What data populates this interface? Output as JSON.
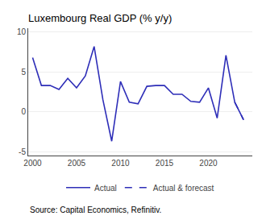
{
  "chart_data": {
    "type": "line",
    "title": "Luxembourg Real GDP (% y/y)",
    "annotations": [
      "Source: Capital Economics, Refinitiv."
    ],
    "series": [
      {
        "name": "Actual",
        "color": "#2e2eb8",
        "line_style": "solid",
        "x": [
          2000,
          2001,
          2002,
          2003,
          2004,
          2005,
          2006,
          2007,
          2008,
          2009,
          2010,
          2011,
          2012,
          2013,
          2014,
          2015,
          2016,
          2017,
          2018,
          2019,
          2020,
          2021,
          2022,
          2023,
          2024
        ],
        "values": [
          6.8,
          3.3,
          3.3,
          2.8,
          4.2,
          3.0,
          4.5,
          8.2,
          1.5,
          -3.7,
          3.8,
          1.2,
          1.0,
          3.2,
          3.3,
          3.3,
          2.2,
          2.2,
          1.3,
          1.2,
          3.0,
          -0.8,
          7.1,
          1.2,
          -1.0
        ]
      },
      {
        "name": "Actual & forecast",
        "color": "#2e2eb8",
        "line_style": "dashed",
        "x": [
          2023,
          2024
        ],
        "values": [
          1.2,
          -1.0
        ]
      }
    ],
    "xlim": [
      1999.5,
      2025.0
    ],
    "xticks": [
      2000,
      2005,
      2010,
      2015,
      2020
    ],
    "ylim": [
      -5.5,
      10.5
    ],
    "yticks": [
      -5,
      0,
      5,
      10
    ],
    "grid": true,
    "legend": "bottom"
  }
}
